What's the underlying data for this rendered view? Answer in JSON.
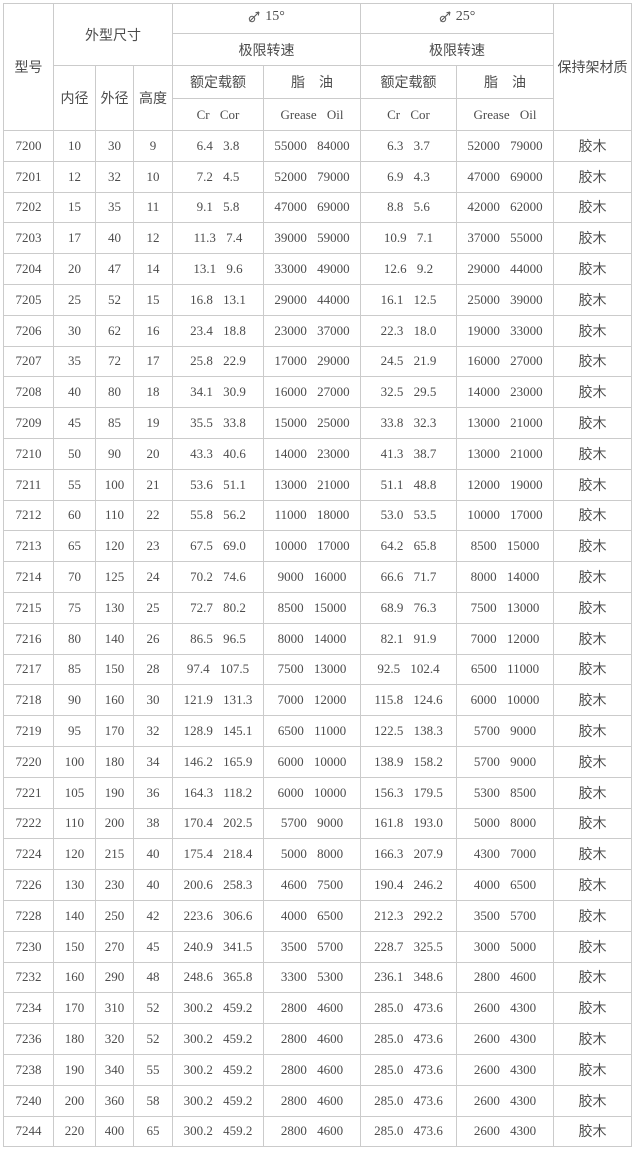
{
  "page": {
    "background": "#ffffff",
    "border_color": "#cbcbcb",
    "text_color": "#4c4c4c"
  },
  "icons": {
    "contact_angle": "circle-with-up-right-arrow (approx. ⌀↗)"
  },
  "table": {
    "header": {
      "model": "型号",
      "dimensions": "外型尺寸",
      "inner_diameter": "内径",
      "outer_diameter": "外径",
      "height": "高度",
      "angle_15": "15°",
      "angle_25": "25°",
      "limit_speed": "极限转速",
      "rated_load": "额定载额",
      "grease_oil": "脂　油",
      "cr_cor": "Cr Cor",
      "grease_oil_en": "Grease Oil",
      "cage_material": "保持架材质"
    },
    "columns": [
      "型号",
      "内径",
      "外径",
      "高度",
      "15° Cr Cor",
      "15° Grease Oil",
      "25° Cr Cor",
      "25° Grease Oil",
      "保持架材质"
    ],
    "rows": [
      [
        "7200",
        "10",
        "30",
        "9",
        "6.4 3.8",
        "55000 84000",
        "6.3 3.7",
        "52000 79000",
        "胶木"
      ],
      [
        "7201",
        "12",
        "32",
        "10",
        "7.2 4.5",
        "52000 79000",
        "6.9 4.3",
        "47000 69000",
        "胶木"
      ],
      [
        "7202",
        "15",
        "35",
        "11",
        "9.1 5.8",
        "47000 69000",
        "8.8 5.6",
        "42000 62000",
        "胶木"
      ],
      [
        "7203",
        "17",
        "40",
        "12",
        "11.3 7.4",
        "39000 59000",
        "10.9 7.1",
        "37000 55000",
        "胶木"
      ],
      [
        "7204",
        "20",
        "47",
        "14",
        "13.1 9.6",
        "33000 49000",
        "12.6 9.2",
        "29000 44000",
        "胶木"
      ],
      [
        "7205",
        "25",
        "52",
        "15",
        "16.8 13.1",
        "29000 44000",
        "16.1 12.5",
        "25000 39000",
        "胶木"
      ],
      [
        "7206",
        "30",
        "62",
        "16",
        "23.4 18.8",
        "23000 37000",
        "22.3 18.0",
        "19000 33000",
        "胶木"
      ],
      [
        "7207",
        "35",
        "72",
        "17",
        "25.8 22.9",
        "17000 29000",
        "24.5 21.9",
        "16000 27000",
        "胶木"
      ],
      [
        "7208",
        "40",
        "80",
        "18",
        "34.1 30.9",
        "16000 27000",
        "32.5 29.5",
        "14000 23000",
        "胶木"
      ],
      [
        "7209",
        "45",
        "85",
        "19",
        "35.5 33.8",
        "15000 25000",
        "33.8 32.3",
        "13000 21000",
        "胶木"
      ],
      [
        "7210",
        "50",
        "90",
        "20",
        "43.3 40.6",
        "14000 23000",
        "41.3 38.7",
        "13000 21000",
        "胶木"
      ],
      [
        "7211",
        "55",
        "100",
        "21",
        "53.6 51.1",
        "13000 21000",
        "51.1 48.8",
        "12000 19000",
        "胶木"
      ],
      [
        "7212",
        "60",
        "110",
        "22",
        "55.8 56.2",
        "11000 18000",
        "53.0 53.5",
        "10000 17000",
        "胶木"
      ],
      [
        "7213",
        "65",
        "120",
        "23",
        "67.5 69.0",
        "10000 17000",
        "64.2 65.8",
        "8500 15000",
        "胶木"
      ],
      [
        "7214",
        "70",
        "125",
        "24",
        "70.2 74.6",
        "9000 16000",
        "66.6 71.7",
        "8000 14000",
        "胶木"
      ],
      [
        "7215",
        "75",
        "130",
        "25",
        "72.7 80.2",
        "8500 15000",
        "68.9 76.3",
        "7500 13000",
        "胶木"
      ],
      [
        "7216",
        "80",
        "140",
        "26",
        "86.5 96.5",
        "8000 14000",
        "82.1 91.9",
        "7000 12000",
        "胶木"
      ],
      [
        "7217",
        "85",
        "150",
        "28",
        "97.4 107.5",
        "7500 13000",
        "92.5 102.4",
        "6500 11000",
        "胶木"
      ],
      [
        "7218",
        "90",
        "160",
        "30",
        "121.9 131.3",
        "7000 12000",
        "115.8 124.6",
        "6000 10000",
        "胶木"
      ],
      [
        "7219",
        "95",
        "170",
        "32",
        "128.9 145.1",
        "6500 11000",
        "122.5 138.3",
        "5700 9000",
        "胶木"
      ],
      [
        "7220",
        "100",
        "180",
        "34",
        "146.2 165.9",
        "6000 10000",
        "138.9 158.2",
        "5700 9000",
        "胶木"
      ],
      [
        "7221",
        "105",
        "190",
        "36",
        "164.3 118.2",
        "6000 10000",
        "156.3 179.5",
        "5300 8500",
        "胶木"
      ],
      [
        "7222",
        "110",
        "200",
        "38",
        "170.4 202.5",
        "5700 9000",
        "161.8 193.0",
        "5000 8000",
        "胶木"
      ],
      [
        "7224",
        "120",
        "215",
        "40",
        "175.4 218.4",
        "5000 8000",
        "166.3 207.9",
        "4300 7000",
        "胶木"
      ],
      [
        "7226",
        "130",
        "230",
        "40",
        "200.6 258.3",
        "4600 7500",
        "190.4 246.2",
        "4000 6500",
        "胶木"
      ],
      [
        "7228",
        "140",
        "250",
        "42",
        "223.6 306.6",
        "4000 6500",
        "212.3 292.2",
        "3500 5700",
        "胶木"
      ],
      [
        "7230",
        "150",
        "270",
        "45",
        "240.9 341.5",
        "3500 5700",
        "228.7 325.5",
        "3000 5000",
        "胶木"
      ],
      [
        "7232",
        "160",
        "290",
        "48",
        "248.6 365.8",
        "3300 5300",
        "236.1 348.6",
        "2800 4600",
        "胶木"
      ],
      [
        "7234",
        "170",
        "310",
        "52",
        "300.2 459.2",
        "2800 4600",
        "285.0 473.6",
        "2600 4300",
        "胶木"
      ],
      [
        "7236",
        "180",
        "320",
        "52",
        "300.2 459.2",
        "2800 4600",
        "285.0 473.6",
        "2600 4300",
        "胶木"
      ],
      [
        "7238",
        "190",
        "340",
        "55",
        "300.2 459.2",
        "2800 4600",
        "285.0 473.6",
        "2600 4300",
        "胶木"
      ],
      [
        "7240",
        "200",
        "360",
        "58",
        "300.2 459.2",
        "2800 4600",
        "285.0 473.6",
        "2600 4300",
        "胶木"
      ],
      [
        "7244",
        "220",
        "400",
        "65",
        "300.2 459.2",
        "2800 4600",
        "285.0 473.6",
        "2600 4300",
        "胶木"
      ]
    ]
  }
}
